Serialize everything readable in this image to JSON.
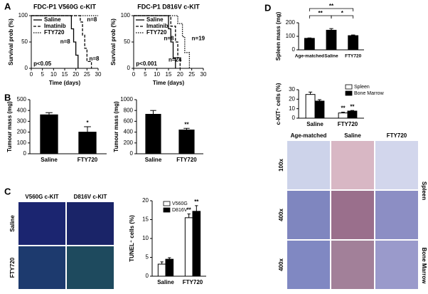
{
  "panel_labels": [
    "A",
    "B",
    "C",
    "D"
  ],
  "chart_data": [
    {
      "type": "line",
      "title": "FDC-P1 V560G c-KIT",
      "x_label": "Time (days)",
      "y_label": "Survival prob (%)",
      "xlim": [
        0,
        30
      ],
      "xticks": [
        0,
        5,
        10,
        15,
        20,
        25,
        30
      ],
      "ylim": [
        0,
        100
      ],
      "yticks": [
        0,
        50,
        100
      ],
      "series": [
        {
          "name": "Saline",
          "color": "#000000",
          "line_style": "solid",
          "x": [
            0,
            18,
            18,
            19,
            19,
            20,
            20,
            21,
            21
          ],
          "values": [
            100,
            100,
            75,
            75,
            50,
            50,
            25,
            25,
            0
          ]
        },
        {
          "name": "Imatinib",
          "color": "#000000",
          "line_style": "dashed",
          "x": [
            0,
            22,
            22,
            23,
            23,
            24,
            24,
            25,
            25,
            27,
            27
          ],
          "values": [
            100,
            100,
            88,
            88,
            63,
            63,
            38,
            38,
            13,
            13,
            0
          ]
        },
        {
          "name": "FTY720",
          "color": "#000000",
          "line_style": "dotted",
          "x": [
            0,
            30
          ],
          "values": [
            100,
            100
          ]
        }
      ],
      "annotations": [
        "n=8",
        "n=8",
        "n=8",
        "p<0.05"
      ]
    },
    {
      "type": "line",
      "title": "FDC-P1 D816V c-KIT",
      "x_label": "Time (days)",
      "y_label": "Survival prob (%)",
      "xlim": [
        0,
        30
      ],
      "xticks": [
        0,
        5,
        10,
        15,
        20,
        25,
        30
      ],
      "ylim": [
        0,
        100
      ],
      "yticks": [
        0,
        50,
        100
      ],
      "series": [
        {
          "name": "Saline",
          "color": "#000000",
          "line_style": "solid",
          "x": [
            0,
            15,
            15,
            16,
            16,
            17,
            17,
            18,
            18
          ],
          "values": [
            100,
            100,
            75,
            75,
            50,
            50,
            20,
            20,
            0
          ]
        },
        {
          "name": "Imatinib",
          "color": "#000000",
          "line_style": "dashed",
          "x": [
            0,
            16,
            16,
            18,
            18,
            19,
            19,
            20,
            20
          ],
          "values": [
            100,
            100,
            80,
            80,
            50,
            50,
            20,
            20,
            0
          ]
        },
        {
          "name": "FTY720",
          "color": "#000000",
          "line_style": "dotted",
          "x": [
            0,
            19,
            19,
            21,
            21,
            22,
            22,
            24,
            24
          ],
          "values": [
            100,
            100,
            85,
            85,
            60,
            60,
            30,
            30,
            0
          ]
        }
      ],
      "annotations": [
        "n=8",
        "n=19",
        "n=24",
        "p<0.001"
      ]
    },
    {
      "type": "bar",
      "y_label": "Tumour mass (mg)",
      "categories": [
        "Saline",
        "FTY720"
      ],
      "series": [
        {
          "color": "#000000",
          "values": [
            360,
            200
          ],
          "errors": [
            20,
            50
          ]
        }
      ],
      "ylim": [
        0,
        500
      ],
      "yticks": [
        0,
        100,
        200,
        300,
        400,
        500
      ],
      "annotations": [
        "*"
      ]
    },
    {
      "type": "bar",
      "y_label": "Tumour mass (mg)",
      "categories": [
        "Saline",
        "FTY720"
      ],
      "series": [
        {
          "color": "#000000",
          "values": [
            730,
            440
          ],
          "errors": [
            70,
            30
          ]
        }
      ],
      "ylim": [
        0,
        1000
      ],
      "yticks": [
        0,
        200,
        400,
        600,
        800,
        1000
      ],
      "annotations": [
        "**"
      ]
    },
    {
      "type": "bar",
      "y_label": "TUNEL⁺ cells (%)",
      "categories": [
        "Saline",
        "FTY720"
      ],
      "series": [
        {
          "name": "V560G",
          "color": "#ffffff",
          "values": [
            3.2,
            15.5
          ],
          "errors": [
            0.6,
            1.0
          ]
        },
        {
          "name": "D816V",
          "color": "#000000",
          "values": [
            4.5,
            17.2
          ],
          "errors": [
            0.4,
            1.5
          ]
        }
      ],
      "ylim": [
        0,
        20
      ],
      "yticks": [
        0,
        5,
        10,
        15,
        20
      ],
      "annotations": [
        "**",
        "**"
      ]
    },
    {
      "type": "bar",
      "y_label": "Spleen mass (mg)",
      "categories": [
        "Age-matched",
        "Saline",
        "FTY720"
      ],
      "series": [
        {
          "color": "#000000",
          "values": [
            85,
            145,
            105
          ],
          "errors": [
            3,
            12,
            5
          ]
        }
      ],
      "ylim": [
        0,
        200
      ],
      "yticks": [
        0,
        100,
        200
      ],
      "annotations": [
        "**",
        "**",
        "*"
      ]
    },
    {
      "type": "bar",
      "y_label": "c-KIT⁺ cells (%)",
      "categories": [
        "Saline",
        "FTY720"
      ],
      "series": [
        {
          "name": "Spleen",
          "color": "#ffffff",
          "values": [
            25,
            5.5
          ],
          "errors": [
            2.5,
            0.8
          ]
        },
        {
          "name": "Bone Marrow",
          "color": "#000000",
          "values": [
            18,
            7.5
          ],
          "errors": [
            1.5,
            0.6
          ]
        }
      ],
      "ylim": [
        0,
        30
      ],
      "yticks": [
        0,
        10,
        20,
        30
      ],
      "annotations": [
        "**",
        "**"
      ]
    }
  ],
  "image_grids": [
    {
      "columns": [
        "V560G c-KIT",
        "D816V c-KIT"
      ],
      "rows": [
        "Saline",
        "FTY720"
      ]
    },
    {
      "columns": [
        "Age-matched",
        "Saline",
        "FTY720"
      ],
      "rows": [
        "100x",
        "400x",
        "400x"
      ],
      "tissues": [
        "Spleen",
        "Bone Marrow"
      ]
    }
  ]
}
